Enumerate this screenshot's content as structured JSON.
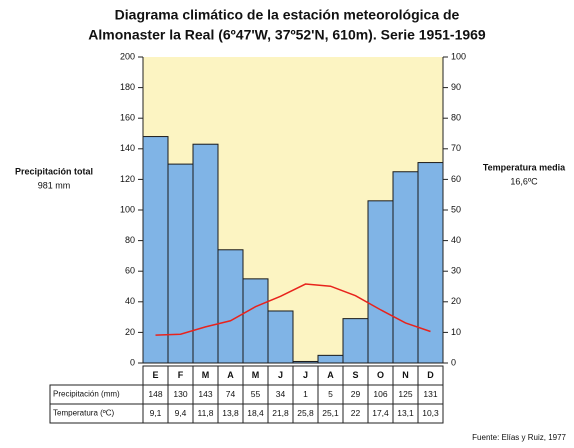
{
  "chart_data": {
    "type": "bar-line",
    "title": [
      "Diagrama climático de la estación meteorológica de",
      "Almonaster la Real (6º47'W, 37º52'N, 610m). Serie 1951-1969"
    ],
    "ylabel": [
      "Precipitación total",
      "981 mm"
    ],
    "y2label": [
      "Temperatura media",
      "16,6ºC"
    ],
    "source": "Fuente: Elías y Ruiz, 1977",
    "categories": [
      "E",
      "F",
      "M",
      "A",
      "M",
      "J",
      "J",
      "A",
      "S",
      "O",
      "N",
      "D"
    ],
    "series": [
      {
        "name": "Precipitación (mm)",
        "color": "#80b4e6",
        "values": [
          148,
          130,
          143,
          74,
          55,
          34,
          1,
          5,
          29,
          106,
          125,
          131
        ]
      },
      {
        "name": "Temperatura (ºC)",
        "color": "#e8231c",
        "axis": "y2",
        "values": [
          9.1,
          9.4,
          11.8,
          13.8,
          18.4,
          21.8,
          25.8,
          25.1,
          22,
          17.4,
          13.1,
          10.3
        ],
        "value_labels": [
          "9,1",
          "9,4",
          "11,8",
          "13,8",
          "18,4",
          "21,8",
          "25,8",
          "25,1",
          "22",
          "17,4",
          "13,1",
          "10,3"
        ]
      }
    ],
    "ylim": [
      0,
      200
    ],
    "yticks": [
      0,
      20,
      40,
      60,
      80,
      100,
      120,
      140,
      160,
      180,
      200
    ],
    "y2lim": [
      0,
      100
    ],
    "y2ticks": [
      0,
      10,
      20,
      30,
      40,
      50,
      60,
      70,
      80,
      90,
      100
    ],
    "background": "#fcf4c2"
  }
}
